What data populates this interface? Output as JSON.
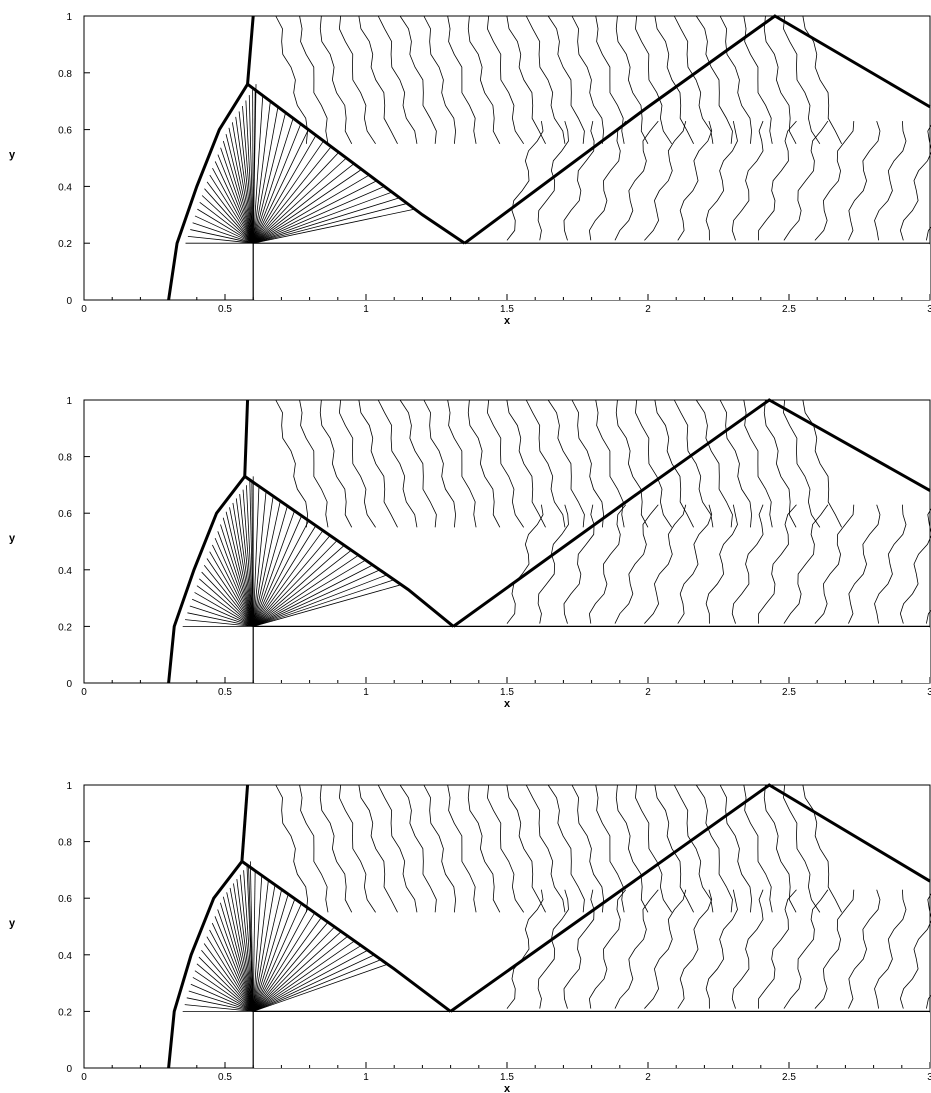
{
  "chart_data": [
    {
      "type": "contour",
      "xlabel": "x",
      "ylabel": "y",
      "xlim": [
        0,
        3
      ],
      "ylim": [
        0,
        1
      ],
      "x_ticks": [
        "0",
        "0.5",
        "1",
        "1.5",
        "2",
        "2.5",
        "3"
      ],
      "y_ticks": [
        "0",
        "0.2",
        "0.4",
        "0.6",
        "0.8",
        "1"
      ],
      "step": {
        "x": 0.6,
        "y": 0.2
      },
      "features": {
        "bow_shock": [
          [
            0.3,
            0
          ],
          [
            0.33,
            0.2
          ],
          [
            0.4,
            0.4
          ],
          [
            0.48,
            0.6
          ],
          [
            0.58,
            0.76
          ]
        ],
        "mach_stem": [
          [
            0.58,
            0.76
          ],
          [
            0.6,
            1.0
          ]
        ],
        "reflected_shock": [
          [
            0.58,
            0.76
          ],
          [
            1.2,
            0.3
          ],
          [
            1.35,
            0.2
          ]
        ],
        "wall_reflected_shock": [
          [
            1.35,
            0.2
          ],
          [
            2.0,
            0.68
          ],
          [
            2.45,
            1.0
          ],
          [
            3.0,
            0.68
          ]
        ],
        "fan_center": [
          0.6,
          0.2
        ]
      }
    },
    {
      "type": "contour",
      "xlabel": "x",
      "ylabel": "y",
      "xlim": [
        0,
        3
      ],
      "ylim": [
        0,
        1
      ],
      "x_ticks": [
        "0",
        "0.5",
        "1",
        "1.5",
        "2",
        "2.5",
        "3"
      ],
      "y_ticks": [
        "0",
        "0.2",
        "0.4",
        "0.6",
        "0.8",
        "1"
      ],
      "step": {
        "x": 0.6,
        "y": 0.2
      },
      "features": {
        "bow_shock": [
          [
            0.3,
            0
          ],
          [
            0.32,
            0.2
          ],
          [
            0.39,
            0.4
          ],
          [
            0.47,
            0.6
          ],
          [
            0.57,
            0.73
          ]
        ],
        "mach_stem": [
          [
            0.57,
            0.73
          ],
          [
            0.58,
            1.0
          ]
        ],
        "reflected_shock": [
          [
            0.57,
            0.73
          ],
          [
            1.15,
            0.33
          ],
          [
            1.31,
            0.2
          ]
        ],
        "wall_reflected_shock": [
          [
            1.31,
            0.2
          ],
          [
            1.95,
            0.66
          ],
          [
            2.43,
            1.0
          ],
          [
            3.0,
            0.68
          ]
        ],
        "fan_center": [
          0.6,
          0.2
        ]
      }
    },
    {
      "type": "contour",
      "xlabel": "x",
      "ylabel": "y",
      "xlim": [
        0,
        3
      ],
      "ylim": [
        0,
        1
      ],
      "x_ticks": [
        "0",
        "0.5",
        "1",
        "1.5",
        "2",
        "2.5",
        "3"
      ],
      "y_ticks": [
        "0",
        "0.2",
        "0.4",
        "0.6",
        "0.8",
        "1"
      ],
      "step": {
        "x": 0.6,
        "y": 0.2
      },
      "features": {
        "bow_shock": [
          [
            0.3,
            0
          ],
          [
            0.32,
            0.2
          ],
          [
            0.38,
            0.4
          ],
          [
            0.46,
            0.6
          ],
          [
            0.56,
            0.73
          ]
        ],
        "mach_stem": [
          [
            0.56,
            0.73
          ],
          [
            0.58,
            1.0
          ]
        ],
        "reflected_shock": [
          [
            0.56,
            0.73
          ],
          [
            1.1,
            0.35
          ],
          [
            1.3,
            0.2
          ]
        ],
        "wall_reflected_shock": [
          [
            1.3,
            0.2
          ],
          [
            1.95,
            0.66
          ],
          [
            2.43,
            1.0
          ],
          [
            3.0,
            0.66
          ]
        ],
        "fan_center": [
          0.6,
          0.2
        ]
      }
    }
  ]
}
